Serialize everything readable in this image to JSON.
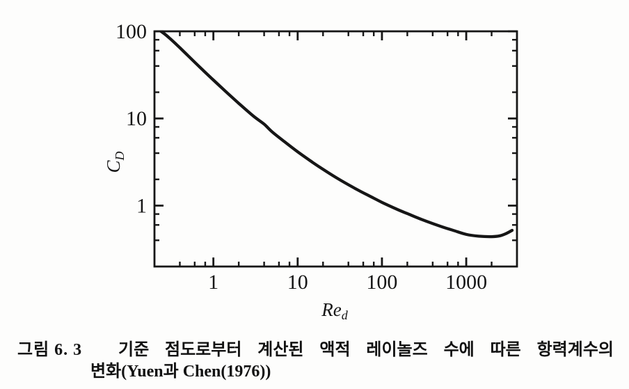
{
  "figure": {
    "background": "#fdfdfc",
    "ink": "#161616",
    "caption": {
      "label": "그림 6. 3",
      "line1": "기준 점도로부터 계산된 액적 레이놀즈 수에 따른 항력계수의",
      "line2": "변화(Yuen과 Chen(1976))"
    }
  },
  "chart_data": {
    "type": "line",
    "title": "",
    "x_scale": "log",
    "y_scale": "log",
    "xlabel": {
      "main": "Re",
      "sub": "d"
    },
    "ylabel": {
      "main": "C",
      "sub": "D"
    },
    "xlim": [
      0.2,
      4000
    ],
    "ylim": [
      0.2,
      100
    ],
    "grid": false,
    "legend": "none",
    "x_major_ticks": {
      "values": [
        1,
        10,
        100,
        1000
      ],
      "labels": [
        "1",
        "10",
        "100",
        "1000"
      ]
    },
    "x_minor_ticks": [
      0.4,
      0.6,
      0.8,
      2,
      4,
      6,
      8,
      20,
      40,
      60,
      80,
      200,
      400,
      600,
      800,
      2000,
      4000
    ],
    "y_major_ticks": {
      "values": [
        1,
        10,
        100
      ],
      "labels": [
        "1",
        "10",
        "100"
      ]
    },
    "y_minor_ticks": [
      0.4,
      0.6,
      0.8,
      2,
      4,
      6,
      8,
      20,
      40,
      60,
      80
    ],
    "series": [
      {
        "name": "drag coefficient vs droplet Reynolds number (reference viscosity)",
        "x": [
          0.21,
          0.25,
          0.3,
          0.4,
          0.5,
          0.7,
          1,
          1.5,
          2,
          3,
          4,
          5,
          7,
          10,
          15,
          20,
          30,
          50,
          70,
          100,
          150,
          200,
          300,
          500,
          700,
          1000,
          1400,
          2000,
          2500,
          3000,
          3500
        ],
        "y": [
          108,
          97,
          84,
          64.8,
          52.5,
          38.3,
          27.6,
          19.2,
          14.9,
          10.6,
          8.6,
          7.0,
          5.4,
          4.15,
          3.14,
          2.61,
          2.04,
          1.54,
          1.3,
          1.09,
          0.91,
          0.81,
          0.69,
          0.577,
          0.52,
          0.468,
          0.446,
          0.44,
          0.45,
          0.48,
          0.52
        ]
      }
    ]
  }
}
